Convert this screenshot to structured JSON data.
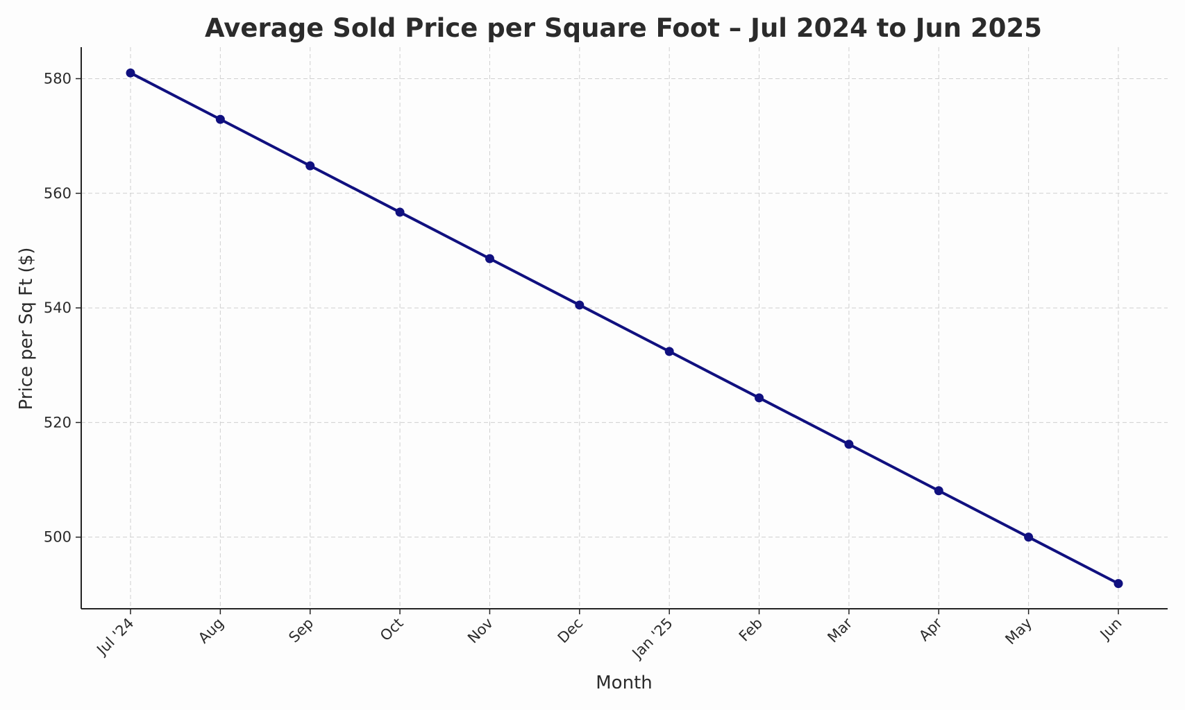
{
  "chart_data": {
    "type": "line",
    "title": "Average Sold Price per Square Foot – Jul 2024 to Jun 2025",
    "xlabel": "Month",
    "ylabel": "Price per Sq Ft ($)",
    "categories": [
      "Jul '24",
      "Aug",
      "Sep",
      "Oct",
      "Nov",
      "Dec",
      "Jan '25",
      "Feb",
      "Mar",
      "Apr",
      "May",
      "Jun"
    ],
    "series": [
      {
        "values": [
          581.0,
          572.9,
          564.8,
          556.7,
          548.6,
          540.5,
          532.4,
          524.3,
          516.2,
          508.1,
          500.0,
          491.9
        ]
      }
    ],
    "ylim": [
      487.5,
      585.5
    ],
    "yticks": [
      500,
      520,
      540,
      560,
      580
    ],
    "grid": true,
    "legend": "none",
    "color": "#10107f"
  }
}
